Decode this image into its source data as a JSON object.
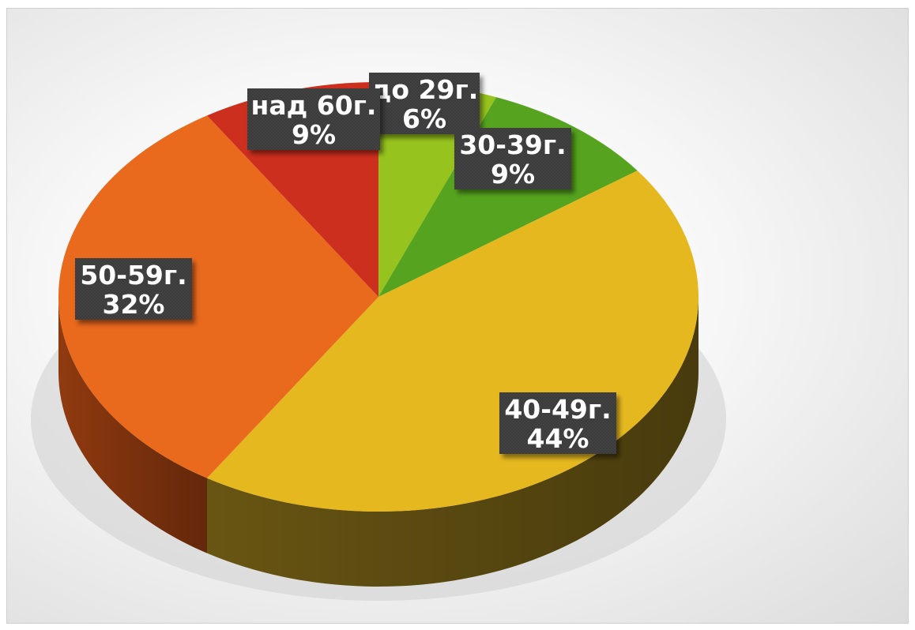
{
  "chart_data": {
    "type": "pie",
    "title": "",
    "slices": [
      {
        "label": "до 29г.",
        "value": 6,
        "value_label": "6%",
        "color": "#96c31e",
        "side": "#5f7d12"
      },
      {
        "label": "30-39г.",
        "value": 9,
        "value_label": "9%",
        "color": "#55a31e",
        "side": "#35661a"
      },
      {
        "label": "40-49г.",
        "value": 44,
        "value_label": "44%",
        "color": "#e6b820",
        "side": "#6e5a14"
      },
      {
        "label": "50-59г.",
        "value": 32,
        "value_label": "32%",
        "color": "#e9691d",
        "side": "#983d10"
      },
      {
        "label": "над 60г.",
        "value": 9,
        "value_label": "9%",
        "color": "#cd2f1e",
        "side": "#7a1c12"
      }
    ],
    "start_angle_deg": -90,
    "direction": "clockwise",
    "legend": "none",
    "data_labels": "category and percent, dark callout boxes"
  }
}
